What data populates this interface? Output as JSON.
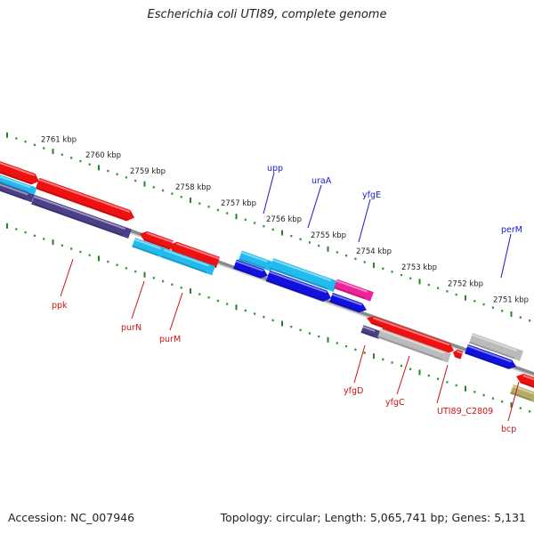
{
  "title": "Escherichia coli UTI89, complete genome",
  "footer": {
    "accession": "Accession: NC_007946",
    "summary": "Topology: circular; Length: 5,065,741 bp; Genes: 5,131"
  },
  "colors": {
    "backbone": "#8a8a8a",
    "tick_major": "#2f7d2f",
    "tick_minor": "#2f9a2f",
    "kbp_label": "#222222",
    "gene_label_upper": "#1a1acc",
    "gene_label_lower": "#cc1111",
    "red": "#ee1111",
    "cyan": "#22bbee",
    "blue": "#1111dd",
    "navy": "#4a3f88",
    "magenta": "#ee2299",
    "grey": "#bbbbbb",
    "olive": "#b5ab66"
  },
  "kbp_scale": [
    {
      "label": "2761 kbp"
    },
    {
      "label": "2760 kbp"
    },
    {
      "label": "2759 kbp"
    },
    {
      "label": "2758 kbp"
    },
    {
      "label": "2757 kbp"
    },
    {
      "label": "2756 kbp"
    },
    {
      "label": "2755 kbp"
    },
    {
      "label": "2754 kbp"
    },
    {
      "label": "2753 kbp"
    },
    {
      "label": "2752 kbp"
    },
    {
      "label": "2751 kbp"
    }
  ],
  "gene_labels": [
    {
      "name": "upp"
    },
    {
      "name": "uraA"
    },
    {
      "name": "yfgE"
    },
    {
      "name": "perM"
    },
    {
      "name": "ppk"
    },
    {
      "name": "purN"
    },
    {
      "name": "purM"
    },
    {
      "name": "yfgD"
    },
    {
      "name": "yfgC"
    },
    {
      "name": "UTI89_C2809"
    },
    {
      "name": "bcp"
    }
  ]
}
